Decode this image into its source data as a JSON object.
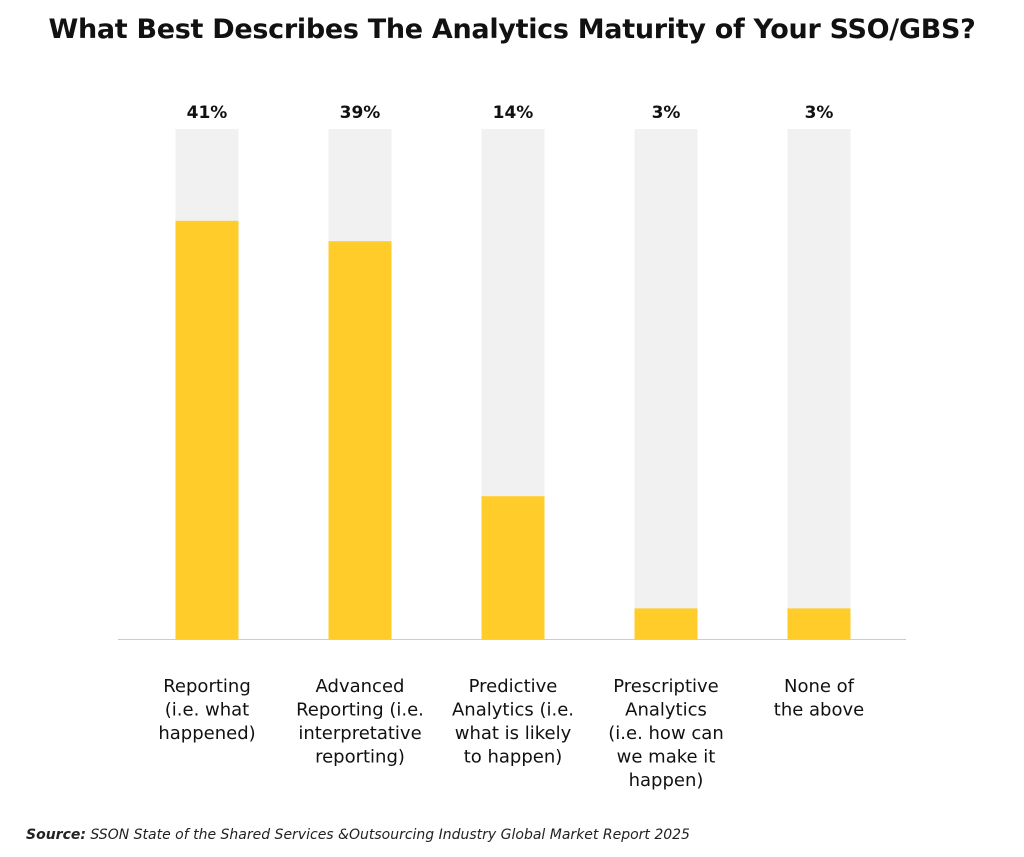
{
  "title": "What Best Describes The Analytics Maturity of Your SSO/GBS?",
  "source": {
    "label": "Source:",
    "text": "SSON State of the Shared Services &Outsourcing Industry Global Market Report 2025"
  },
  "colors": {
    "bar": "#FFCC29",
    "track": "#F1F1F1",
    "baseline": "#CCCCCC",
    "text": "#111111"
  },
  "chart_data": {
    "type": "bar",
    "title": "What Best Describes The Analytics Maturity of Your SSO/GBS?",
    "xlabel": "",
    "ylabel": "",
    "ylim": [
      0,
      50
    ],
    "grid": false,
    "legend": "none",
    "categories": [
      [
        "Reporting",
        "(i.e. what",
        "happened)"
      ],
      [
        "Advanced",
        "Reporting (i.e.",
        "interpretative",
        "reporting)"
      ],
      [
        "Predictive",
        "Analytics (i.e.",
        "what is likely",
        "to happen)"
      ],
      [
        "Prescriptive",
        "Analytics",
        "(i.e. how can",
        "we make it",
        "happen)"
      ],
      [
        "None of",
        "the above"
      ]
    ],
    "values": [
      41,
      39,
      14,
      3,
      3
    ],
    "value_labels": [
      "41%",
      "39%",
      "14%",
      "3%",
      "3%"
    ]
  }
}
